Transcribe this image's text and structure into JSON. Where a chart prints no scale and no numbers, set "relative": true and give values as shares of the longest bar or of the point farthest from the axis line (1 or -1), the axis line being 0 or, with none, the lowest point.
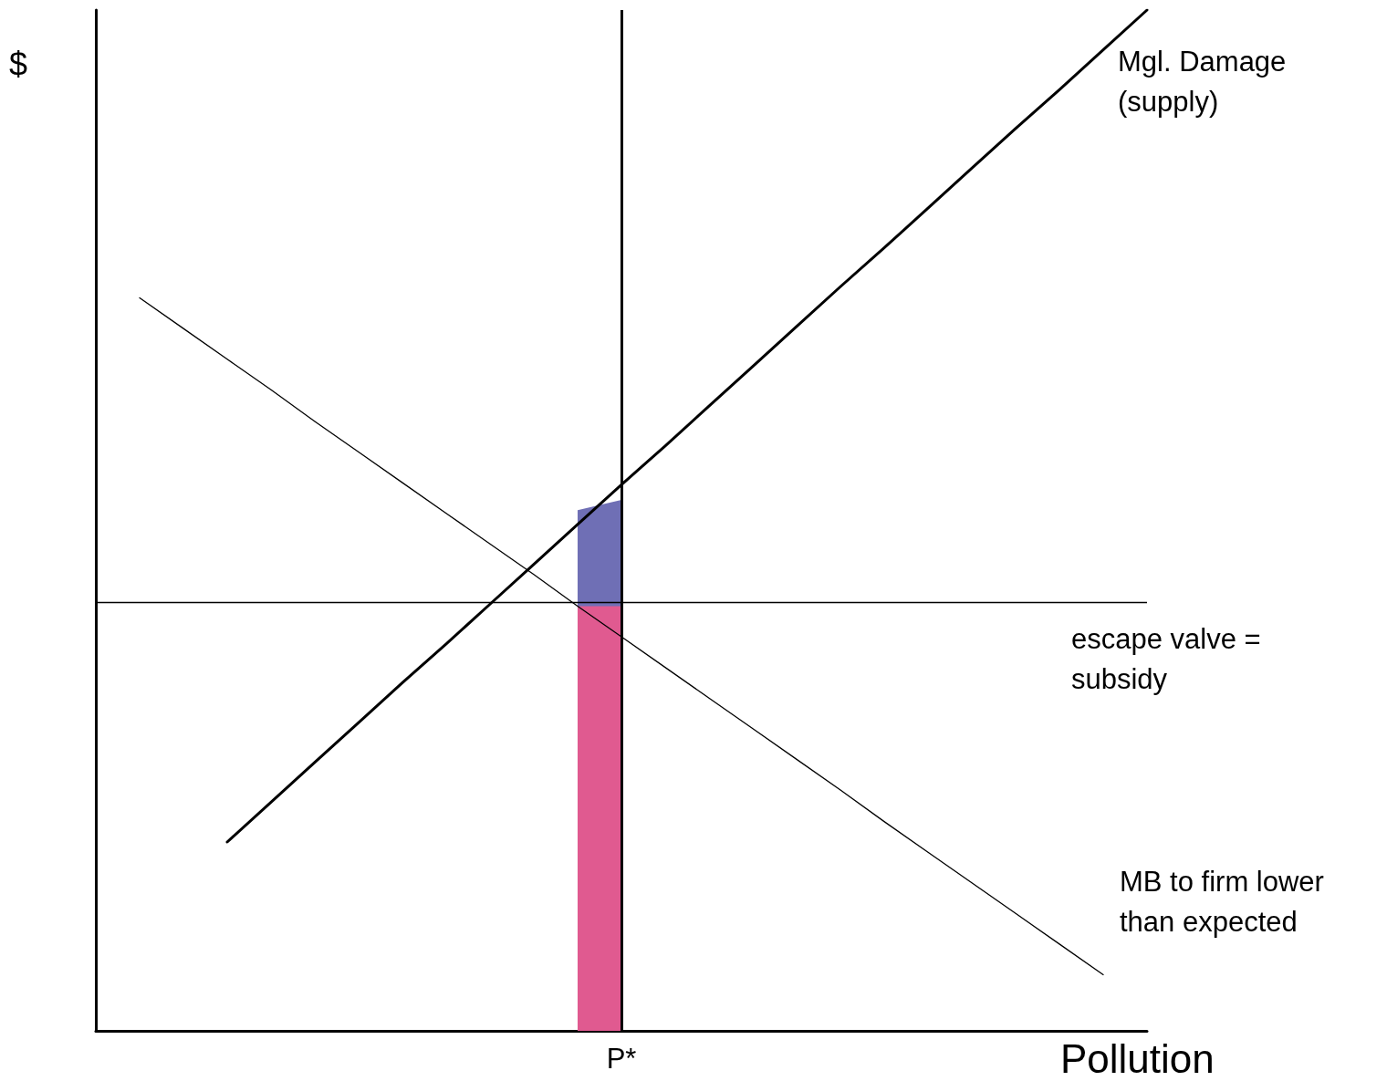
{
  "chart_data": {
    "type": "line",
    "relative": true,
    "xlabel": "Pollution",
    "ylabel": "$",
    "grid": false,
    "legend": false,
    "marker": "none",
    "line_style": "solid",
    "categories": [
      null,
      null,
      null,
      null,
      null,
      null,
      null,
      null,
      null,
      null,
      null,
      null,
      null,
      null,
      null,
      null,
      null,
      null,
      null,
      null,
      null,
      null,
      null,
      null,
      null
    ],
    "series": [
      {
        "name": "Mgl. Damage (supply)",
        "color": "#000000",
        "values": [
          null,
          null,
          null,
          0.185,
          0.224,
          0.263,
          0.302,
          0.341,
          0.379,
          0.418,
          0.457,
          0.496,
          0.535,
          0.573,
          0.612,
          0.651,
          0.69,
          0.729,
          0.767,
          0.806,
          0.845,
          0.884,
          0.922,
          0.961,
          1
        ]
      },
      {
        "name": "MB to firm lower than expected",
        "color": "#000000",
        "values": [
          null,
          0.718,
          0.688,
          0.658,
          0.628,
          0.597,
          0.567,
          0.537,
          0.507,
          0.477,
          0.447,
          0.416,
          0.386,
          0.356,
          0.326,
          0.296,
          0.266,
          0.236,
          0.205,
          0.175,
          0.145,
          0.115,
          0.085,
          0.055,
          null
        ]
      },
      {
        "type": "area",
        "color": "#6f6fb5",
        "values": [
          null,
          null,
          null,
          null,
          null,
          null,
          null,
          null,
          null,
          null,
          null,
          0.51,
          0.52,
          null,
          null,
          null,
          null,
          null,
          null,
          null,
          null,
          null,
          null,
          null,
          null
        ]
      },
      {
        "type": "area",
        "color": "#e05a90",
        "values": [
          null,
          null,
          null,
          null,
          null,
          null,
          null,
          null,
          null,
          null,
          null,
          0.416,
          0.416,
          null,
          null,
          null,
          null,
          null,
          null,
          null,
          null,
          null,
          null,
          null,
          null
        ]
      }
    ],
    "annotations": [
      "P*"
    ],
    "ref_lines": [
      {
        "axis": "y",
        "value": 0.416,
        "label": "escape valve = subsidy",
        "color": "#000000"
      }
    ]
  }
}
